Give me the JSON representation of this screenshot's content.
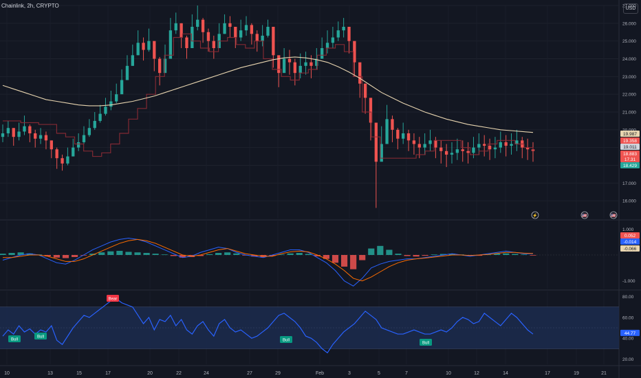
{
  "header": {
    "symbol_title": "Chainlink, 2h, CRYPTO",
    "currency": "USD"
  },
  "colors": {
    "background": "#131722",
    "up": "#26a69a",
    "down": "#ef5350",
    "ma": "#e8d5b0",
    "macd_line": "#2962ff",
    "signal_line": "#ff6d00",
    "rsi_line": "#2962ff",
    "rsi_band": "#1c2c4d"
  },
  "chart_data": [
    {
      "type": "line",
      "panel": "price",
      "ylim": [
        15.0,
        27.0
      ],
      "y_ticks": [
        "16.000",
        "17.000",
        "18.000",
        "19.000",
        "20.000",
        "21.000",
        "22.000",
        "23.000",
        "24.000",
        "25.000",
        "26.000",
        "27.000"
      ],
      "x_ticks": [
        "10",
        "13",
        "15",
        "17",
        "20",
        "22",
        "24",
        "27",
        "29",
        "Feb",
        "3",
        "5",
        "7",
        "10",
        "12",
        "14",
        "17",
        "19",
        "21"
      ],
      "series": [
        {
          "kind": "candles_close",
          "values": [
            19.8,
            20.1,
            19.6,
            19.9,
            20.2,
            19.8,
            19.5,
            19.7,
            19.4,
            18.9,
            18.4,
            18.1,
            18.5,
            19.0,
            19.3,
            19.7,
            20.1,
            20.5,
            20.9,
            21.3,
            21.6,
            22.0,
            22.8,
            23.6,
            24.2,
            24.9,
            24.5,
            25.0,
            24.0,
            23.2,
            24.0,
            25.6,
            26.0,
            25.2,
            24.6,
            25.8,
            26.2,
            25.5,
            25.0,
            24.6,
            25.4,
            26.0,
            25.8,
            25.2,
            25.6,
            25.9,
            25.4,
            25.0,
            25.3,
            25.8,
            24.2,
            23.2,
            24.0,
            23.8,
            23.2,
            23.6,
            23.8,
            23.6,
            24.0,
            24.6,
            24.9,
            25.2,
            25.6,
            25.8,
            25.0,
            23.8,
            22.6,
            21.8,
            20.4,
            18.2,
            19.2,
            20.6,
            20.0,
            19.5,
            19.8,
            19.4,
            19.2,
            19.0,
            19.2,
            19.4,
            19.0,
            18.8,
            18.6,
            18.7,
            18.9,
            18.8,
            18.7,
            19.0,
            19.2,
            19.1,
            18.9,
            19.0,
            19.3,
            19.1,
            19.2,
            19.4,
            19.0,
            18.9,
            18.8
          ],
          "high": [
            20.3,
            20.5,
            20.1,
            20.4,
            20.8,
            20.3,
            20.0,
            20.1,
            19.9,
            19.4,
            19.0,
            18.6,
            19.0,
            19.5,
            19.8,
            20.2,
            20.6,
            21.0,
            21.4,
            21.8,
            22.2,
            22.6,
            23.4,
            24.2,
            24.8,
            25.6,
            25.2,
            25.7,
            24.8,
            24.1,
            24.8,
            26.3,
            26.6,
            26.0,
            25.3,
            26.5,
            27.0,
            26.3,
            25.7,
            25.3,
            26.0,
            26.5,
            26.4,
            25.8,
            26.2,
            26.4,
            26.0,
            25.6,
            25.9,
            26.2,
            25.1,
            24.1,
            24.6,
            24.5,
            24.0,
            24.3,
            24.4,
            24.2,
            24.6,
            25.2,
            25.6,
            25.8,
            26.1,
            26.3,
            25.8,
            24.8,
            23.4,
            22.6,
            21.4,
            19.6,
            20.2,
            21.4,
            20.8,
            20.1,
            20.4,
            20.0,
            19.8,
            19.6,
            19.8,
            20.0,
            19.6,
            19.4,
            19.2,
            19.3,
            19.5,
            19.4,
            19.3,
            19.6,
            19.8,
            19.7,
            19.5,
            19.6,
            19.9,
            19.7,
            19.8,
            20.0,
            19.6,
            19.5,
            19.3
          ],
          "low": [
            19.3,
            19.6,
            19.1,
            19.4,
            19.7,
            19.3,
            19.0,
            19.2,
            18.9,
            18.4,
            17.8,
            17.7,
            18.0,
            18.5,
            18.8,
            19.2,
            19.6,
            20.0,
            20.4,
            20.8,
            21.1,
            21.5,
            22.2,
            23.0,
            23.6,
            24.2,
            23.9,
            24.4,
            23.3,
            22.5,
            23.4,
            25.0,
            25.4,
            24.6,
            24.0,
            25.1,
            25.6,
            24.9,
            24.4,
            24.0,
            24.8,
            25.4,
            25.2,
            24.6,
            25.0,
            25.3,
            24.8,
            24.4,
            24.7,
            25.2,
            23.5,
            22.4,
            23.3,
            23.1,
            22.5,
            22.9,
            23.1,
            22.9,
            23.4,
            24.0,
            24.3,
            24.6,
            25.0,
            25.2,
            24.3,
            23.0,
            21.8,
            20.9,
            19.4,
            15.6,
            18.4,
            19.8,
            19.3,
            18.9,
            19.2,
            18.8,
            18.6,
            18.4,
            18.6,
            18.8,
            18.4,
            18.1,
            17.9,
            18.1,
            18.3,
            18.2,
            18.1,
            18.4,
            18.6,
            18.5,
            18.3,
            18.4,
            18.7,
            18.5,
            18.6,
            18.8,
            18.4,
            18.3,
            18.2
          ]
        },
        {
          "kind": "moving_average",
          "values": [
            22.5,
            22.3,
            22.1,
            21.9,
            21.7,
            21.6,
            21.5,
            21.4,
            21.35,
            21.35,
            21.4,
            21.5,
            21.6,
            21.75,
            21.9,
            22.1,
            22.3,
            22.5,
            22.7,
            22.9,
            23.1,
            23.3,
            23.5,
            23.65,
            23.8,
            23.95,
            24.05,
            24.1,
            24.05,
            23.95,
            23.8,
            23.55,
            23.25,
            22.9,
            22.5,
            22.1,
            21.8,
            21.5,
            21.25,
            21.0,
            20.8,
            20.6,
            20.45,
            20.3,
            20.2,
            20.1,
            20.0,
            19.95,
            19.9,
            19.85
          ]
        },
        {
          "kind": "stop_band",
          "values": [
            20.5,
            20.5,
            20.4,
            20.4,
            20.3,
            20.3,
            19.8,
            19.6,
            19.2,
            18.8,
            18.5,
            18.7,
            19.2,
            19.8,
            20.6,
            21.2,
            22.0,
            23.0,
            24.2,
            25.2,
            25.4,
            25.0,
            24.6,
            24.4,
            25.0,
            25.2,
            24.8,
            24.6,
            25.0,
            24.0,
            23.4,
            23.0,
            22.8,
            23.2,
            23.4,
            24.2,
            24.6,
            24.8,
            24.4,
            23.0,
            21.0,
            19.6,
            18.4,
            18.4,
            18.4,
            18.4,
            18.6,
            18.8,
            19.4,
            19.4,
            19.4,
            19.0,
            18.6,
            18.8,
            19.2,
            19.4,
            19.4,
            19.2,
            19.0,
            18.8
          ]
        }
      ],
      "price_labels": [
        {
          "text": "19.987",
          "color": "#e8d5b0",
          "text_color": "#131722"
        },
        {
          "text": "19.358",
          "color": "#ef5350",
          "text_color": "#ffffff"
        },
        {
          "text": "19.011",
          "color": "#d1d4dc",
          "text_color": "#131722"
        },
        {
          "text": "18.883",
          "color": "#ef5350",
          "text_color": "#ffffff"
        },
        {
          "text": "17.31",
          "color": "#ef5350",
          "text_color": "#ffffff"
        },
        {
          "text": "18.429",
          "color": "#26a69a",
          "text_color": "#ffffff"
        }
      ],
      "event_icons": [
        {
          "name": "lightning-icon",
          "glyph": "⚡"
        },
        {
          "name": "us-flag-icon",
          "glyph": "🇺🇸"
        },
        {
          "name": "us-flag-icon",
          "glyph": "🇺🇸"
        }
      ]
    },
    {
      "type": "bar",
      "panel": "macd",
      "ylim": [
        -1.3,
        1.3
      ],
      "y_ticks": [
        "1.000",
        "-1.000"
      ],
      "histogram": [
        0.05,
        0.08,
        0.1,
        0.06,
        0.02,
        -0.05,
        -0.1,
        -0.12,
        -0.08,
        -0.02,
        0.05,
        0.1,
        0.14,
        0.16,
        0.12,
        0.1,
        0.08,
        0.05,
        0.02,
        -0.04,
        -0.1,
        -0.08,
        -0.04,
        0.03,
        0.08,
        0.1,
        0.06,
        -0.02,
        -0.06,
        -0.08,
        -0.04,
        0.02,
        0.06,
        0.08,
        0.04,
        -0.05,
        -0.15,
        -0.3,
        -0.45,
        -0.55,
        -0.2,
        0.25,
        0.35,
        0.2,
        0.05,
        -0.04,
        -0.06,
        -0.03,
        0.02,
        0.04,
        0.05,
        0.02,
        -0.02,
        -0.03,
        0.02,
        0.05,
        0.06,
        0.04,
        0.02,
        -0.02
      ],
      "series": [
        {
          "name": "MACD",
          "values": [
            -0.2,
            -0.1,
            0.0,
            0.05,
            0.0,
            -0.15,
            -0.3,
            -0.35,
            -0.2,
            0.0,
            0.2,
            0.35,
            0.5,
            0.6,
            0.65,
            0.6,
            0.5,
            0.35,
            0.2,
            0.05,
            -0.1,
            -0.05,
            0.1,
            0.2,
            0.3,
            0.25,
            0.1,
            0.0,
            -0.05,
            -0.1,
            0.0,
            0.1,
            0.2,
            0.2,
            0.1,
            -0.1,
            -0.3,
            -0.6,
            -1.0,
            -1.2,
            -0.9,
            -0.5,
            -0.35,
            -0.25,
            -0.2,
            -0.15,
            -0.15,
            -0.1,
            -0.05,
            0.0,
            0.05,
            0.0,
            -0.05,
            0.0,
            0.05,
            0.1,
            0.15,
            0.1,
            0.05,
            0.05
          ]
        },
        {
          "name": "Signal",
          "values": [
            -0.1,
            -0.1,
            -0.05,
            0.0,
            0.0,
            -0.05,
            -0.15,
            -0.25,
            -0.25,
            -0.15,
            0.0,
            0.15,
            0.3,
            0.45,
            0.55,
            0.6,
            0.55,
            0.45,
            0.3,
            0.15,
            0.0,
            -0.05,
            0.0,
            0.1,
            0.2,
            0.25,
            0.15,
            0.05,
            0.0,
            -0.05,
            -0.05,
            0.05,
            0.12,
            0.15,
            0.12,
            0.0,
            -0.15,
            -0.35,
            -0.6,
            -0.9,
            -1.0,
            -0.85,
            -0.65,
            -0.45,
            -0.3,
            -0.2,
            -0.15,
            -0.12,
            -0.08,
            -0.04,
            0.0,
            0.0,
            -0.02,
            0.0,
            0.02,
            0.06,
            0.1,
            0.1,
            0.07,
            0.06
          ]
        }
      ],
      "value_labels": [
        {
          "text": "0.052",
          "color": "#ef5350",
          "text_color": "#ffffff"
        },
        {
          "text": "-0.014",
          "color": "#2962ff",
          "text_color": "#ffffff"
        },
        {
          "text": "-0.066",
          "color": "#e8d5b0",
          "text_color": "#131722"
        }
      ]
    },
    {
      "type": "line",
      "panel": "rsi",
      "ylim": [
        15,
        85
      ],
      "y_ticks": [
        "20.00",
        "40.00",
        "60.00",
        "80.00"
      ],
      "band": [
        30,
        70
      ],
      "series": [
        {
          "name": "RSI",
          "values": [
            42,
            48,
            44,
            52,
            46,
            49,
            44,
            48,
            46,
            52,
            38,
            34,
            42,
            50,
            56,
            62,
            60,
            64,
            68,
            72,
            76,
            78,
            74,
            72,
            70,
            62,
            54,
            60,
            48,
            58,
            56,
            62,
            52,
            58,
            48,
            44,
            52,
            56,
            48,
            42,
            54,
            58,
            50,
            46,
            48,
            44,
            40,
            42,
            46,
            50,
            56,
            62,
            64,
            60,
            56,
            50,
            42,
            40,
            36,
            30,
            26,
            34,
            40,
            46,
            50,
            54,
            60,
            66,
            62,
            58,
            50,
            48,
            46,
            44,
            44,
            46,
            48,
            46,
            44,
            44,
            46,
            48,
            46,
            50,
            56,
            60,
            58,
            54,
            56,
            64,
            60,
            56,
            52,
            58,
            64,
            60,
            54,
            48,
            44
          ]
        }
      ],
      "value_label": {
        "text": "44.77",
        "color": "#2962ff",
        "text_color": "#ffffff"
      },
      "annotations": [
        {
          "text": "Bull",
          "kind": "bull"
        },
        {
          "text": "Bull",
          "kind": "bull"
        },
        {
          "text": "Bear",
          "kind": "bear"
        },
        {
          "text": "Bull",
          "kind": "bull"
        },
        {
          "text": "Bull",
          "kind": "bull"
        }
      ]
    }
  ]
}
